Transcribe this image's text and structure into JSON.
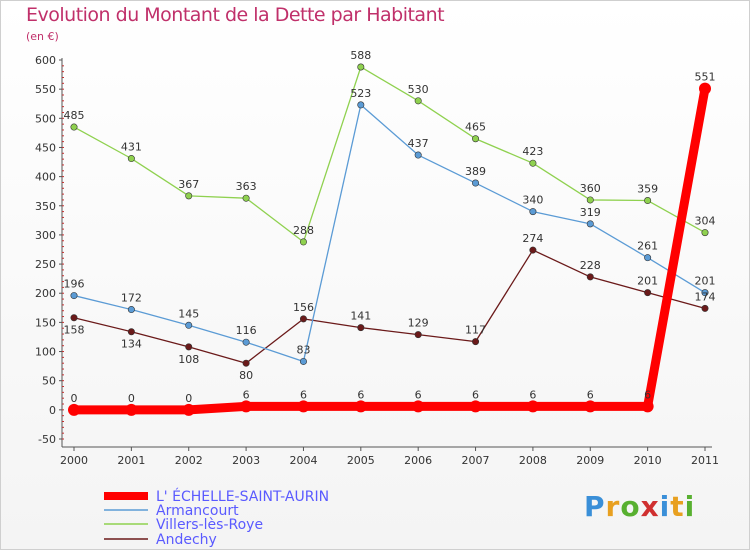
{
  "chart_data": {
    "type": "line",
    "title": "Evolution du Montant de la Dette par Habitant",
    "subtitle": "(en €)",
    "x": [
      "2000",
      "2001",
      "2002",
      "2003",
      "2004",
      "2005",
      "2006",
      "2007",
      "2008",
      "2009",
      "2010",
      "2011"
    ],
    "ylim": [
      -50,
      600
    ],
    "yticks": [
      -50,
      0,
      50,
      100,
      150,
      200,
      250,
      300,
      350,
      400,
      450,
      500,
      550,
      600
    ],
    "grid": false,
    "legend_placement": "bottom-left",
    "series": [
      {
        "name": "L' ÉCHELLE-SAINT-AURIN",
        "color": "#ff0000",
        "bold": true,
        "values": [
          0,
          0,
          0,
          6,
          6,
          6,
          6,
          6,
          6,
          6,
          6,
          551
        ],
        "labels": [
          "0",
          "0",
          "0",
          "6",
          "6",
          "6",
          "6",
          "6",
          "6",
          "6",
          "6",
          "551"
        ]
      },
      {
        "name": "Armancourt",
        "color": "#5b9bd5",
        "values": [
          196,
          172,
          145,
          116,
          83,
          523,
          437,
          389,
          340,
          319,
          261,
          201
        ],
        "labels": [
          "196",
          "172",
          "145",
          "116",
          "83",
          "523",
          "437",
          "389",
          "340",
          "319",
          "261",
          "201"
        ]
      },
      {
        "name": "Villers-lès-Roye",
        "color": "#8fd14f",
        "values": [
          485,
          431,
          367,
          363,
          288,
          588,
          530,
          465,
          423,
          360,
          359,
          304
        ],
        "labels": [
          "485",
          "431",
          "367",
          "363",
          "288",
          "588",
          "530",
          "465",
          "423",
          "360",
          "359",
          "304"
        ]
      },
      {
        "name": "Andechy",
        "color": "#6b1a1a",
        "values": [
          158,
          134,
          108,
          80,
          156,
          141,
          129,
          117,
          274,
          228,
          201,
          174
        ],
        "labels": [
          "158",
          "134",
          "108",
          "80",
          "156",
          "141",
          "129",
          "117",
          "274",
          "228",
          "201",
          "174"
        ]
      }
    ]
  },
  "brand": "Proxiti"
}
